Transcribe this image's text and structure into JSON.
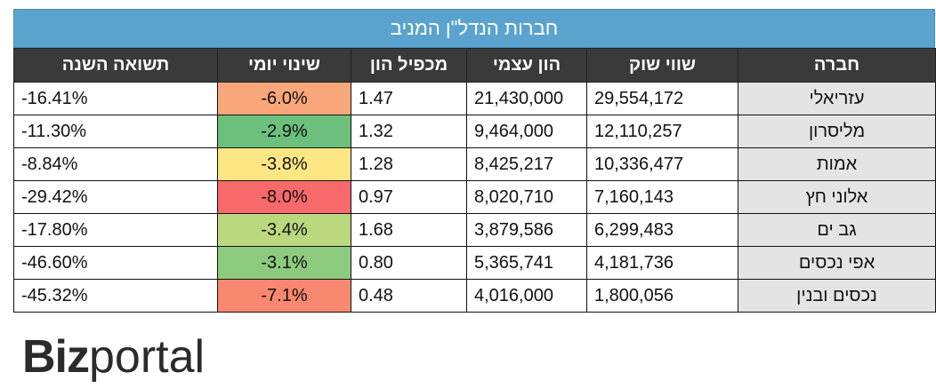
{
  "table": {
    "title": "חברות הנדל\"ן המניב",
    "headers": {
      "company": "חברה",
      "market_cap": "שווי שוק",
      "equity": "הון עצמי",
      "multiplier": "מכפיל הון",
      "daily_change": "שינוי יומי",
      "annual_return": "תשואה השנה"
    },
    "rows": [
      {
        "company": "עזריאלי",
        "market_cap": "29,554,172",
        "equity": "21,430,000",
        "multiplier": "1.47",
        "daily_change": "-6.0%",
        "annual_return": "-16.41%",
        "daily_color": "#f9a77a"
      },
      {
        "company": "מליסרון",
        "market_cap": "12,110,257",
        "equity": "9,464,000",
        "multiplier": "1.32",
        "daily_change": "-2.9%",
        "annual_return": "-11.30%",
        "daily_color": "#6cc07c"
      },
      {
        "company": "אמות",
        "market_cap": "10,336,477",
        "equity": "8,425,217",
        "multiplier": "1.28",
        "daily_change": "-3.8%",
        "annual_return": "-8.84%",
        "daily_color": "#fde784"
      },
      {
        "company": "אלוני חץ",
        "market_cap": "7,160,143",
        "equity": "8,020,710",
        "multiplier": "0.97",
        "daily_change": "-8.0%",
        "annual_return": "-29.42%",
        "daily_color": "#f8696b"
      },
      {
        "company": "גב ים",
        "market_cap": "6,299,483",
        "equity": "3,879,586",
        "multiplier": "1.68",
        "daily_change": "-3.4%",
        "annual_return": "-17.80%",
        "daily_color": "#bcd87f"
      },
      {
        "company": "אפי נכסים",
        "market_cap": "4,181,736",
        "equity": "5,365,741",
        "multiplier": "0.80",
        "daily_change": "-3.1%",
        "annual_return": "-46.60%",
        "daily_color": "#8ccb7e"
      },
      {
        "company": "נכסים ובנין",
        "market_cap": "1,800,056",
        "equity": "4,016,000",
        "multiplier": "0.48",
        "daily_change": "-7.1%",
        "annual_return": "-45.32%",
        "daily_color": "#f98870"
      }
    ]
  },
  "logo": {
    "part1": "Biz",
    "part2": "portal"
  }
}
